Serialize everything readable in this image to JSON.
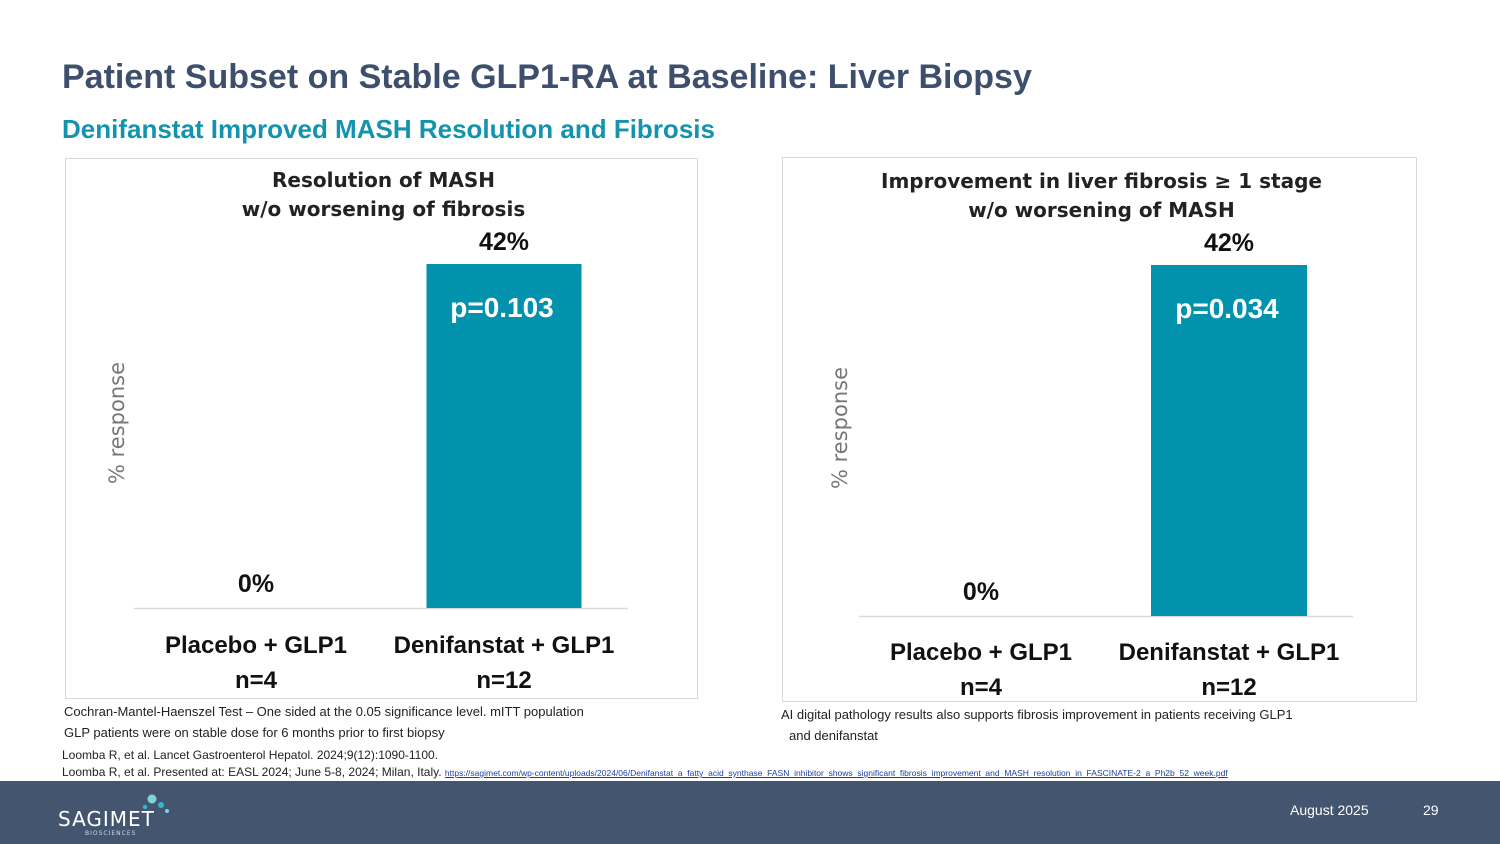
{
  "title": "Patient Subset on Stable GLP1-RA at Baseline: Liver Biopsy",
  "subtitle": "Denifanstat Improved MASH Resolution and Fibrosis",
  "colors": {
    "bar": "#0392ae",
    "title": "#3e4f6d",
    "subtitle": "#1393ae",
    "footer": "#445570"
  },
  "chart_data": [
    {
      "type": "bar",
      "title": [
        "Resolution of MASH",
        "w/o worsening of fibrosis"
      ],
      "ylabel": "% response",
      "ylim": [
        0,
        42
      ],
      "grid": false,
      "categories": [
        {
          "name": "Placebo + GLP1",
          "n": "n=4"
        },
        {
          "name": "Denifanstat + GLP1",
          "n": "n=12"
        }
      ],
      "values": [
        0,
        42
      ],
      "data_labels": [
        "0%",
        "42%"
      ],
      "annotation": "p=0.103"
    },
    {
      "type": "bar",
      "title": [
        "Improvement in liver fibrosis ≥ 1 stage",
        "w/o worsening of MASH"
      ],
      "ylabel": "% response",
      "ylim": [
        0,
        42
      ],
      "grid": false,
      "categories": [
        {
          "name": "Placebo + GLP1",
          "n": "n=4"
        },
        {
          "name": "Denifanstat + GLP1",
          "n": "n=12"
        }
      ],
      "values": [
        0,
        42
      ],
      "data_labels": [
        "0%",
        "42%"
      ],
      "annotation": "p=0.034"
    }
  ],
  "notes": {
    "left": [
      "Cochran-Mantel-Haenszel Test – One sided at the 0.05 significance level. mITT population",
      "GLP patients were on stable dose for 6 months prior to first biopsy"
    ],
    "right": [
      "AI digital pathology results also supports fibrosis improvement in patients receiving GLP1",
      "and denifanstat"
    ]
  },
  "references": {
    "line1": "Loomba R, et al. Lancet Gastroenterol Hepatol. 2024;9(12):1090-1100.",
    "line2": "Loomba R, et al. Presented at: EASL 2024; June 5-8, 2024; Milan, Italy.",
    "link": "https://sagimet.com/wp-content/uploads/2024/06/Denifanstat_a_fatty_acid_synthase_FASN_inhibitor_shows_significant_fibrosis_improvement_and_MASH_resolution_in_FASCINATE-2_a_Ph2b_52_week.pdf"
  },
  "footer": {
    "logo_word": "SAGIMET",
    "logo_sub": "BIOSCIENCES",
    "logo_icon": "dots-logo-icon",
    "date": "August 2025",
    "page": "29"
  }
}
